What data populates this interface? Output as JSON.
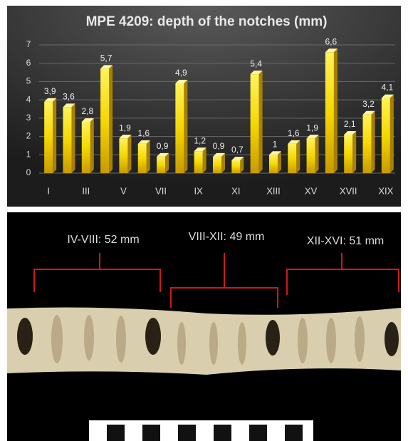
{
  "chart_data": {
    "type": "bar",
    "title": "MPE 4209: depth of the notches (mm)",
    "categories": [
      "I",
      null,
      "III",
      null,
      "V",
      null,
      "VII",
      null,
      "IX",
      null,
      "XI",
      null,
      "XIII",
      null,
      "XV",
      null,
      "XVII",
      null,
      "XIX"
    ],
    "values": [
      3.9,
      3.6,
      2.8,
      5.7,
      1.9,
      1.6,
      0.9,
      4.9,
      1.2,
      0.9,
      0.7,
      5.4,
      1,
      1.6,
      1.9,
      6.6,
      2.1,
      3.2,
      4.1
    ],
    "value_labels": [
      "3,9",
      "3,6",
      "2,8",
      "5,7",
      "1,9",
      "1,6",
      "0,9",
      "4,9",
      "1,2",
      "0,9",
      "0,7",
      "5,4",
      "1",
      "1,6",
      "1,9",
      "6,6",
      "2,1",
      "3,2",
      "4,1"
    ],
    "color": "#f5d800",
    "ylim": [
      0,
      7
    ],
    "yticks": [
      0,
      1,
      2,
      3,
      4,
      5,
      6,
      7
    ],
    "grid": true
  },
  "photo": {
    "annotations": [
      "IV-VIII:  52 mm",
      "VIII-XII:  49 mm",
      "XII-XVI:  51 mm"
    ]
  }
}
